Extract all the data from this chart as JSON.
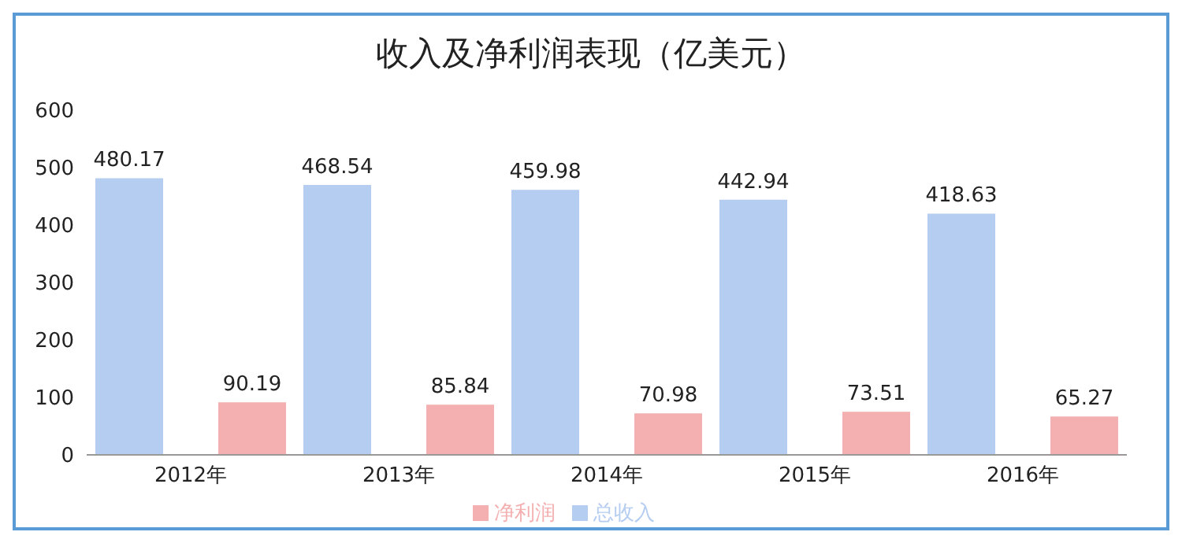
{
  "chart_data": {
    "type": "bar",
    "title": "收入及净利润表现（亿美元）",
    "categories": [
      "2012年",
      "2013年",
      "2014年",
      "2015年",
      "2016年"
    ],
    "series": [
      {
        "name": "总收入",
        "color": "#b4cdf0",
        "values": [
          480.17,
          468.54,
          459.98,
          442.94,
          418.63
        ]
      },
      {
        "name": "净利润",
        "color": "#f4b0b0",
        "values": [
          90.19,
          85.84,
          70.98,
          73.51,
          65.27
        ]
      }
    ],
    "ylim": [
      0,
      600
    ],
    "yticks": [
      0,
      100,
      200,
      300,
      400,
      500,
      600
    ],
    "grid": false,
    "legend": "bottom",
    "data_labels": true
  }
}
